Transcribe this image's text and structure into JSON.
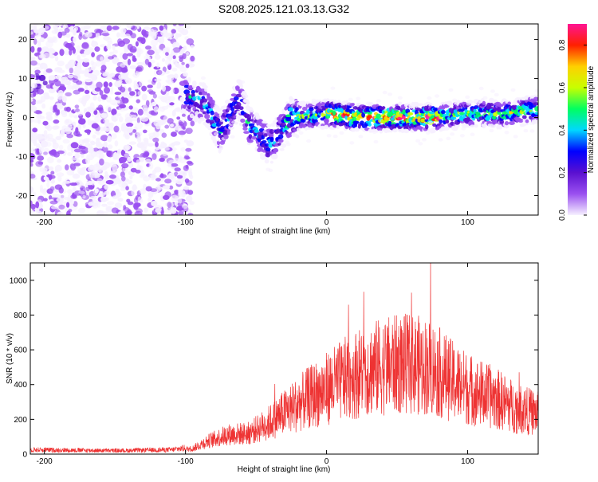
{
  "title": "S208.2025.121.03.13.G32",
  "chart_data": [
    {
      "type": "heatmap",
      "xlabel": "Height of straight line (km)",
      "ylabel": "Frequency (Hz)",
      "xlim": [
        -210,
        150
      ],
      "ylim": [
        -25,
        24
      ],
      "xticks": [
        -200,
        -100,
        0,
        100
      ],
      "yticks": [
        -20,
        -10,
        0,
        10,
        20
      ],
      "colorbar": {
        "label": "Normalized spectral amplitude",
        "range": [
          0.0,
          0.9
        ],
        "ticks": [
          0.0,
          0.2,
          0.4,
          0.6,
          0.8
        ],
        "colors": [
          "#f6f0ff",
          "#9a50f0",
          "#5a10d0",
          "#0000ff",
          "#00d8ff",
          "#00ff60",
          "#c8ff00",
          "#ffd000",
          "#ff2000",
          "#ff1493"
        ]
      },
      "ridge": [
        {
          "x": -100,
          "y": 6
        },
        {
          "x": -85,
          "y": 3
        },
        {
          "x": -75,
          "y": -4
        },
        {
          "x": -62,
          "y": 5
        },
        {
          "x": -55,
          "y": -2
        },
        {
          "x": -40,
          "y": -7
        },
        {
          "x": -25,
          "y": 0
        },
        {
          "x": 0,
          "y": 1
        },
        {
          "x": 25,
          "y": 0
        },
        {
          "x": 50,
          "y": 0
        },
        {
          "x": 75,
          "y": 0
        },
        {
          "x": 100,
          "y": 1
        },
        {
          "x": 125,
          "y": 1
        },
        {
          "x": 150,
          "y": 2
        }
      ]
    },
    {
      "type": "line",
      "xlabel": "Height of straight line (km)",
      "ylabel": "SNR (10 * v/v)",
      "xlim": [
        -210,
        150
      ],
      "ylim": [
        0,
        1100
      ],
      "xticks": [
        -200,
        -100,
        0,
        100
      ],
      "yticks": [
        0,
        200,
        400,
        600,
        800,
        1000
      ],
      "color": "#ee3333",
      "envelope": [
        {
          "x": -210,
          "y": 25
        },
        {
          "x": -150,
          "y": 20
        },
        {
          "x": -110,
          "y": 25
        },
        {
          "x": -95,
          "y": 40
        },
        {
          "x": -85,
          "y": 90
        },
        {
          "x": -70,
          "y": 140
        },
        {
          "x": -55,
          "y": 150
        },
        {
          "x": -40,
          "y": 230
        },
        {
          "x": -25,
          "y": 330
        },
        {
          "x": -10,
          "y": 420
        },
        {
          "x": 0,
          "y": 470
        },
        {
          "x": 15,
          "y": 550
        },
        {
          "x": 30,
          "y": 610
        },
        {
          "x": 45,
          "y": 640
        },
        {
          "x": 60,
          "y": 650
        },
        {
          "x": 75,
          "y": 620
        },
        {
          "x": 90,
          "y": 520
        },
        {
          "x": 105,
          "y": 450
        },
        {
          "x": 120,
          "y": 400
        },
        {
          "x": 135,
          "y": 330
        },
        {
          "x": 150,
          "y": 290
        }
      ]
    }
  ]
}
